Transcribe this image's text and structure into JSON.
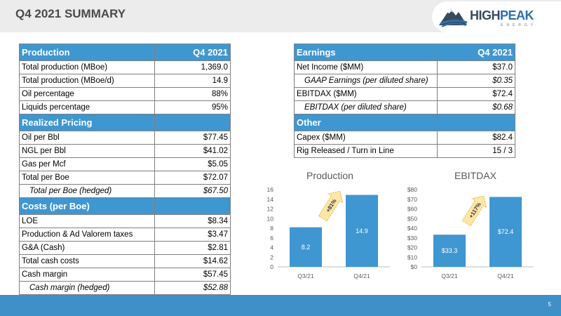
{
  "header": {
    "title": "Q4 2021 SUMMARY"
  },
  "logo": {
    "name_a": "HIGH",
    "name_b": "PEAK",
    "sub": "ENERGY"
  },
  "left_table": {
    "production": {
      "header": "Production",
      "period": "Q4 2021",
      "rows": [
        {
          "label": "Total production (MBoe)",
          "value": "1,369.0"
        },
        {
          "label": "Total production (MBoe/d)",
          "value": "14.9"
        },
        {
          "label": "Oil percentage",
          "value": "88%"
        },
        {
          "label": "Liquids percentage",
          "value": "95%"
        }
      ]
    },
    "pricing": {
      "header": "Realized Pricing",
      "rows": [
        {
          "label": "Oil per Bbl",
          "value": "$77.45"
        },
        {
          "label": "NGL per Bbl",
          "value": "$41.02"
        },
        {
          "label": "Gas per Mcf",
          "value": "$5.05"
        },
        {
          "label": "Total per Boe",
          "value": "$72.07"
        },
        {
          "label": "Total per Boe (hedged)",
          "value": "$67.50"
        }
      ]
    },
    "costs": {
      "header": "Costs (per Boe)",
      "rows": [
        {
          "label": "LOE",
          "value": "$8.34"
        },
        {
          "label": "Production & Ad Valorem taxes",
          "value": "$3.47"
        },
        {
          "label": "G&A (Cash)",
          "value": "$2.81"
        },
        {
          "label": "Total cash costs",
          "value": "$14.62"
        },
        {
          "label": "Cash margin",
          "value": "$57.45"
        },
        {
          "label": "Cash margin (hedged)",
          "value": "$52.88"
        }
      ]
    }
  },
  "right_table": {
    "earnings": {
      "header": "Earnings",
      "period": "Q4 2021",
      "rows": [
        {
          "label": "Net Income ($MM)",
          "value": "$37.0"
        },
        {
          "label": "GAAP Earnings (per diluted share)",
          "value": "$0.35"
        },
        {
          "label": "EBITDAX ($MM)",
          "value": "$72.4"
        },
        {
          "label": "EBITDAX (per diluted share)",
          "value": "$0.68"
        }
      ]
    },
    "other": {
      "header": "Other",
      "rows": [
        {
          "label": "Capex ($MM)",
          "value": "$82.4"
        },
        {
          "label": "Rig Released / Turn in Line",
          "value": "15 / 3"
        }
      ]
    }
  },
  "chart_data": [
    {
      "type": "bar",
      "title": "Production",
      "categories": [
        "Q3/21",
        "Q4/21"
      ],
      "values": [
        8.2,
        14.9
      ],
      "data_labels": [
        "8.2",
        "14.9"
      ],
      "ylim": [
        0,
        16
      ],
      "yticks": [
        "0",
        "2",
        "4",
        "6",
        "8",
        "10",
        "12",
        "14",
        "16"
      ],
      "annotation": "+81%",
      "color": "#3f97d1"
    },
    {
      "type": "bar",
      "title": "EBITDAX",
      "categories": [
        "Q3/21",
        "Q4/21"
      ],
      "values": [
        33.3,
        72.4
      ],
      "data_labels": [
        "$33.3",
        "$72.4"
      ],
      "ylim": [
        0,
        80
      ],
      "yticks": [
        "$0",
        "$10",
        "$20",
        "$30",
        "$40",
        "$50",
        "$60",
        "$70",
        "$80"
      ],
      "annotation": "+117%",
      "color": "#3f97d1"
    }
  ],
  "footer": {
    "page": "5"
  }
}
